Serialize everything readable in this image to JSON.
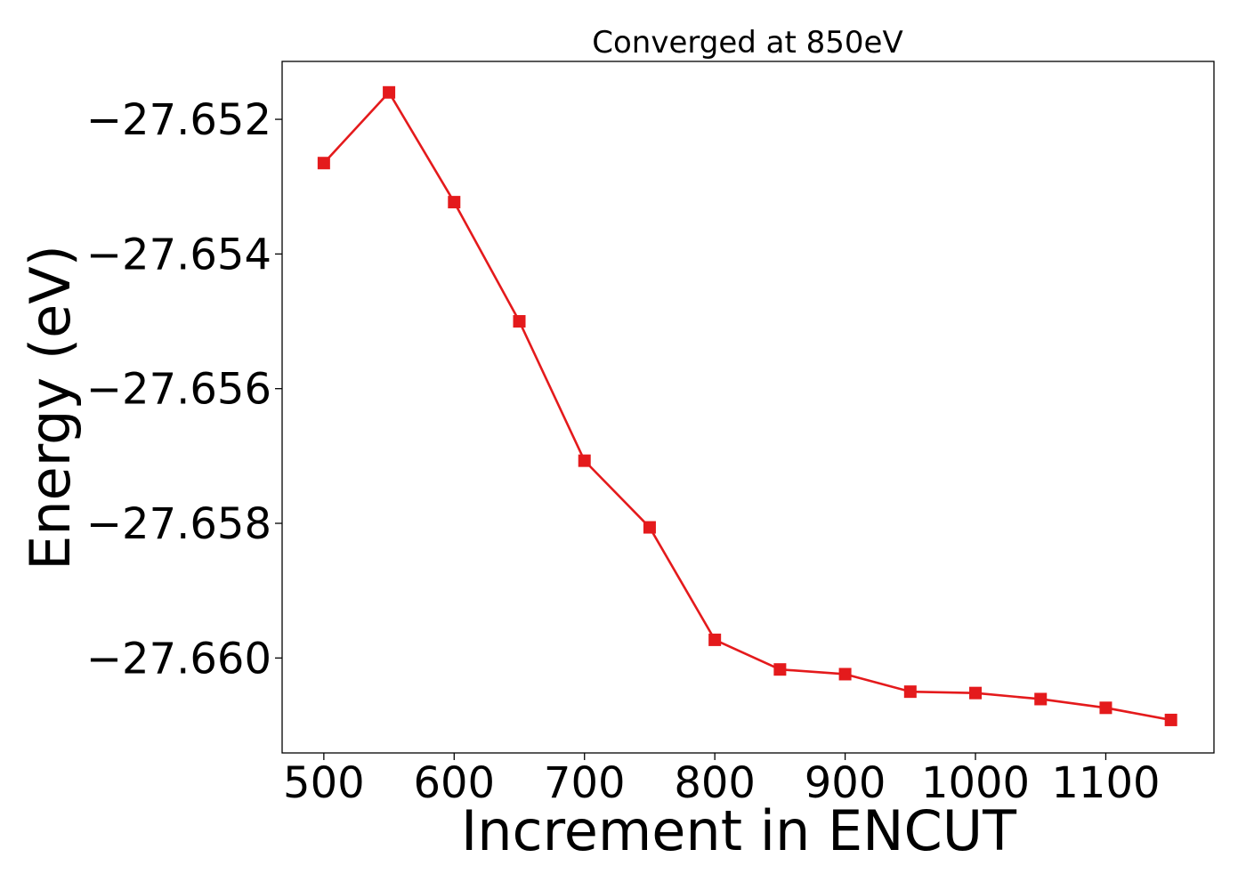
{
  "chart_data": {
    "type": "line",
    "title": "Converged at 850eV",
    "xlabel": "Increment in ENCUT",
    "ylabel": "Energy (eV)",
    "xlim": [
      468,
      1183
    ],
    "ylim": [
      -27.66141,
      -27.65114
    ],
    "xticks": [
      500,
      600,
      700,
      800,
      900,
      1000,
      1100
    ],
    "xtick_labels": [
      "500",
      "600",
      "700",
      "800",
      "900",
      "1000",
      "1100"
    ],
    "yticks": [
      -27.652,
      -27.654,
      -27.656,
      -27.658,
      -27.66
    ],
    "ytick_labels": [
      "−27.652",
      "−27.654",
      "−27.656",
      "−27.658",
      "−27.660"
    ],
    "grid": false,
    "legend": false,
    "series": [
      {
        "color": "#e41a1c",
        "marker": "square",
        "x": [
          500,
          550,
          600,
          650,
          700,
          750,
          800,
          850,
          900,
          950,
          1000,
          1050,
          1100,
          1150
        ],
        "y": [
          -27.65265,
          -27.6516,
          -27.65323,
          -27.655,
          -27.65707,
          -27.65806,
          -27.65973,
          -27.66017,
          -27.66024,
          -27.6605,
          -27.66052,
          -27.66061,
          -27.66074,
          -27.66092
        ]
      }
    ]
  }
}
